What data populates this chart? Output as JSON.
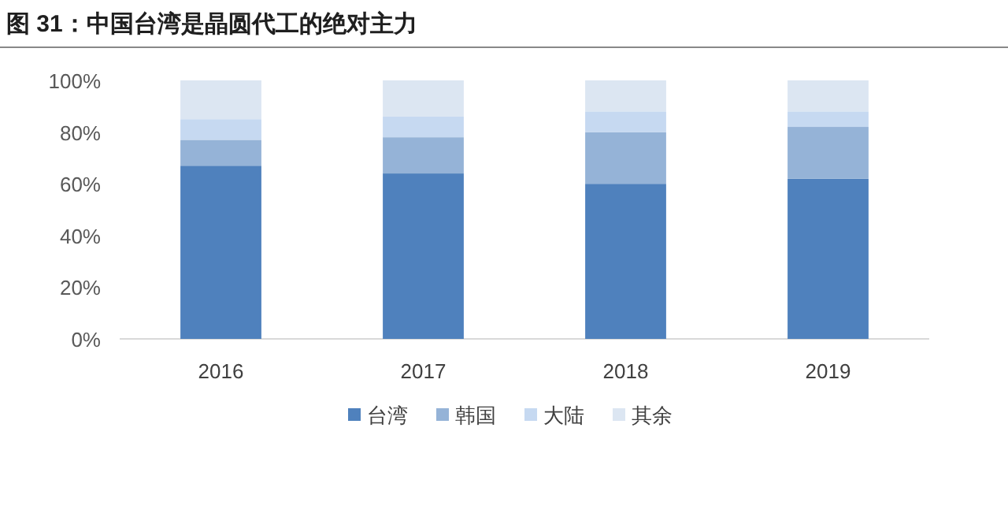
{
  "chart_data": {
    "type": "bar",
    "stacked": true,
    "title": "图 31：中国台湾是晶圆代工的绝对主力",
    "categories": [
      "2016",
      "2017",
      "2018",
      "2019"
    ],
    "series": [
      {
        "name": "台湾",
        "color": "#4f81bd",
        "values": [
          67,
          64,
          60,
          62
        ]
      },
      {
        "name": "韩国",
        "color": "#95b3d7",
        "values": [
          10,
          14,
          20,
          20
        ]
      },
      {
        "name": "大陆",
        "color": "#c6d9f1",
        "values": [
          8,
          8,
          8,
          6
        ]
      },
      {
        "name": "其余",
        "color": "#dce6f2",
        "values": [
          15,
          14,
          12,
          12
        ]
      }
    ],
    "ylim": [
      0,
      100
    ],
    "yticks": [
      {
        "value": 0,
        "label": "0%"
      },
      {
        "value": 20,
        "label": "20%"
      },
      {
        "value": 40,
        "label": "40%"
      },
      {
        "value": 60,
        "label": "60%"
      },
      {
        "value": 80,
        "label": "80%"
      },
      {
        "value": 100,
        "label": "100%"
      }
    ],
    "grid": false,
    "legend": "bottom"
  }
}
